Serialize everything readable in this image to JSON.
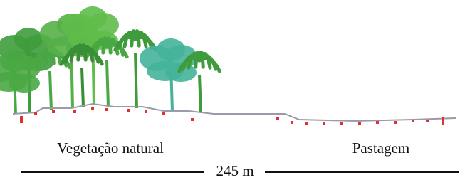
{
  "labels": {
    "left": "Vegetação natural",
    "right": "Pastagem"
  },
  "scale": {
    "label": "245 m"
  }
}
